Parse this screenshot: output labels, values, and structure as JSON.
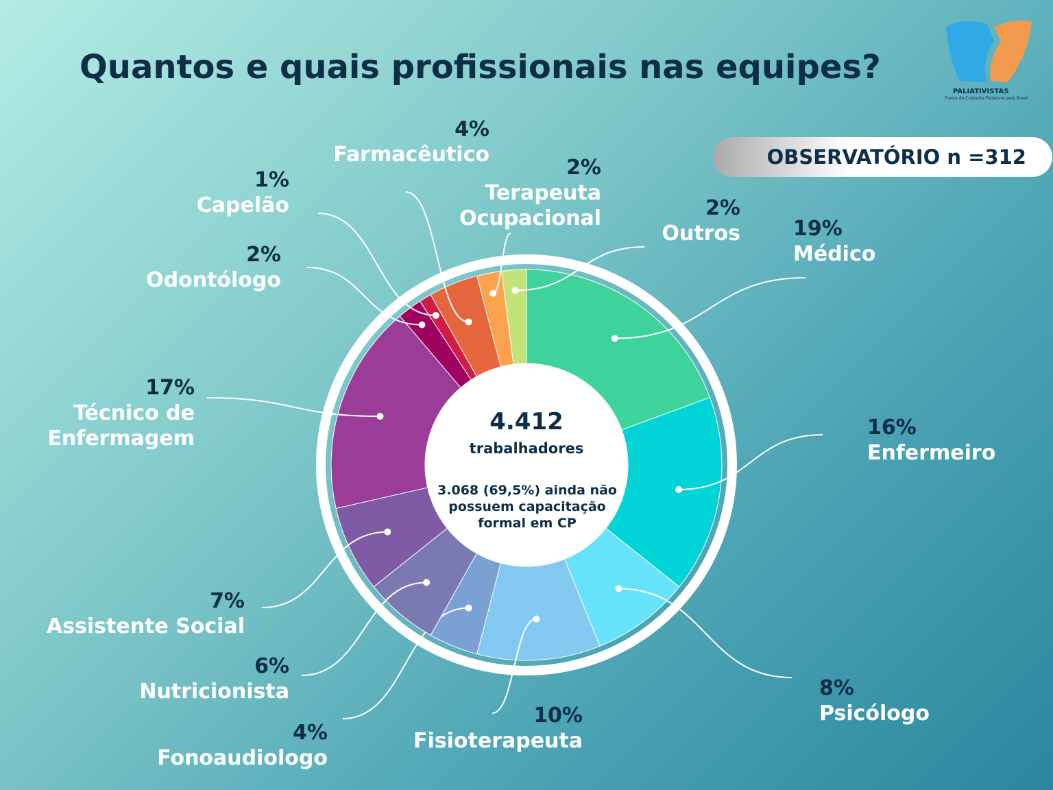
{
  "chart_data": {
    "type": "donut",
    "title": "Quantos e quais profissionais nas equipes?",
    "badge": "OBSERVATÓRIO n =312",
    "logo": {
      "name": "PALIATIVISTAS",
      "tagline": "Frente de Cuidados Paliativos pelo Brasil"
    },
    "center": {
      "total": "4.412",
      "total_label": "trabalhadores",
      "note": "3.068 (69,5%) ainda não possuem capacitação formal em CP"
    },
    "categories": [
      "Médico",
      "Enfermeiro",
      "Psicólogo",
      "Fisioterapeuta",
      "Fonoaudiologo",
      "Nutricionista",
      "Assistente Social",
      "Técnico de Enfermagem",
      "Odontólogo",
      "Capelão",
      "Farmacêutico",
      "Terapeuta Ocupacional",
      "Outros"
    ],
    "values": [
      19,
      16,
      8,
      10,
      4,
      6,
      7,
      17,
      2,
      1,
      4,
      2,
      2
    ],
    "value_labels": [
      "19%",
      "16%",
      "8%",
      "10%",
      "4%",
      "6%",
      "7%",
      "17%",
      "2%",
      "1%",
      "4%",
      "2%",
      "2%"
    ],
    "colors": [
      "#3dd39b",
      "#00d4d6",
      "#66e3fa",
      "#82c8f0",
      "#7ba1d4",
      "#7a7ab0",
      "#7f5aa5",
      "#9b3d98",
      "#a0005f",
      "#cf1e46",
      "#e5653d",
      "#fba24e",
      "#c4e27a"
    ]
  }
}
